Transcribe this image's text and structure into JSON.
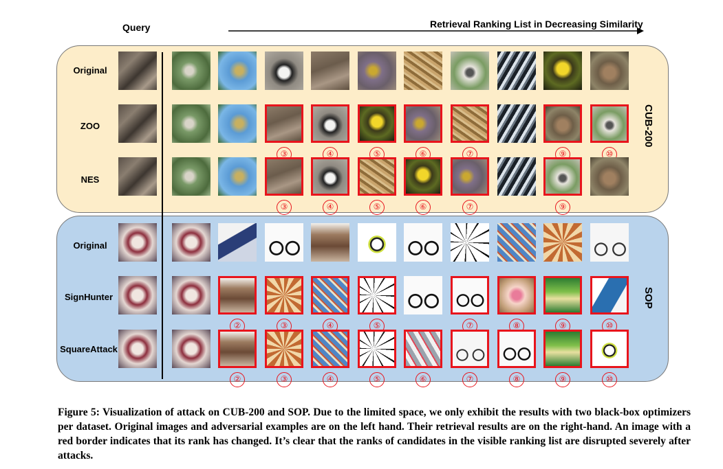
{
  "header": {
    "query_label": "Query",
    "ranking_label": "Retrieval Ranking List in Decreasing Similarity"
  },
  "datasets": [
    {
      "name": "CUB-200",
      "rows": [
        {
          "label": "Original",
          "ranks": [
            "",
            "",
            "",
            "",
            "",
            "",
            "",
            "",
            "",
            ""
          ]
        },
        {
          "label": "ZOO",
          "ranks": [
            "",
            "",
            "③",
            "④",
            "⑤",
            "⑥",
            "⑦",
            "",
            "⑨",
            "⑩"
          ]
        },
        {
          "label": "NES",
          "ranks": [
            "",
            "",
            "③",
            "④",
            "⑤",
            "⑥",
            "⑦",
            "",
            "⑨",
            ""
          ]
        }
      ]
    },
    {
      "name": "SOP",
      "rows": [
        {
          "label": "Original",
          "ranks": [
            "",
            "",
            "",
            "",
            "",
            "",
            "",
            "",
            "",
            ""
          ]
        },
        {
          "label": "SignHunter",
          "ranks": [
            "",
            "②",
            "③",
            "④",
            "⑤",
            "",
            "⑦",
            "⑧",
            "⑨",
            "⑩"
          ]
        },
        {
          "label": "SquareAttack",
          "ranks": [
            "",
            "②",
            "③",
            "④",
            "⑤",
            "⑥",
            "⑦",
            "⑧",
            "⑨",
            "⑩"
          ]
        }
      ]
    }
  ],
  "caption": "Figure 5: Visualization of attack on CUB-200 and SOP. Due to the limited space, we only exhibit the results with two black-box optimizers per dataset. Original images and adversarial examples are on the left hand. Their retrieval results are on the right-hand. An image with a red border indicates that its rank has changed. It’s clear that the ranks of candidates in the visible ranking list are disrupted severely after attacks.",
  "colors": {
    "cub_panel": "#fdedc9",
    "sop_panel": "#b9d3ec",
    "changed_border": "#e8141c"
  }
}
